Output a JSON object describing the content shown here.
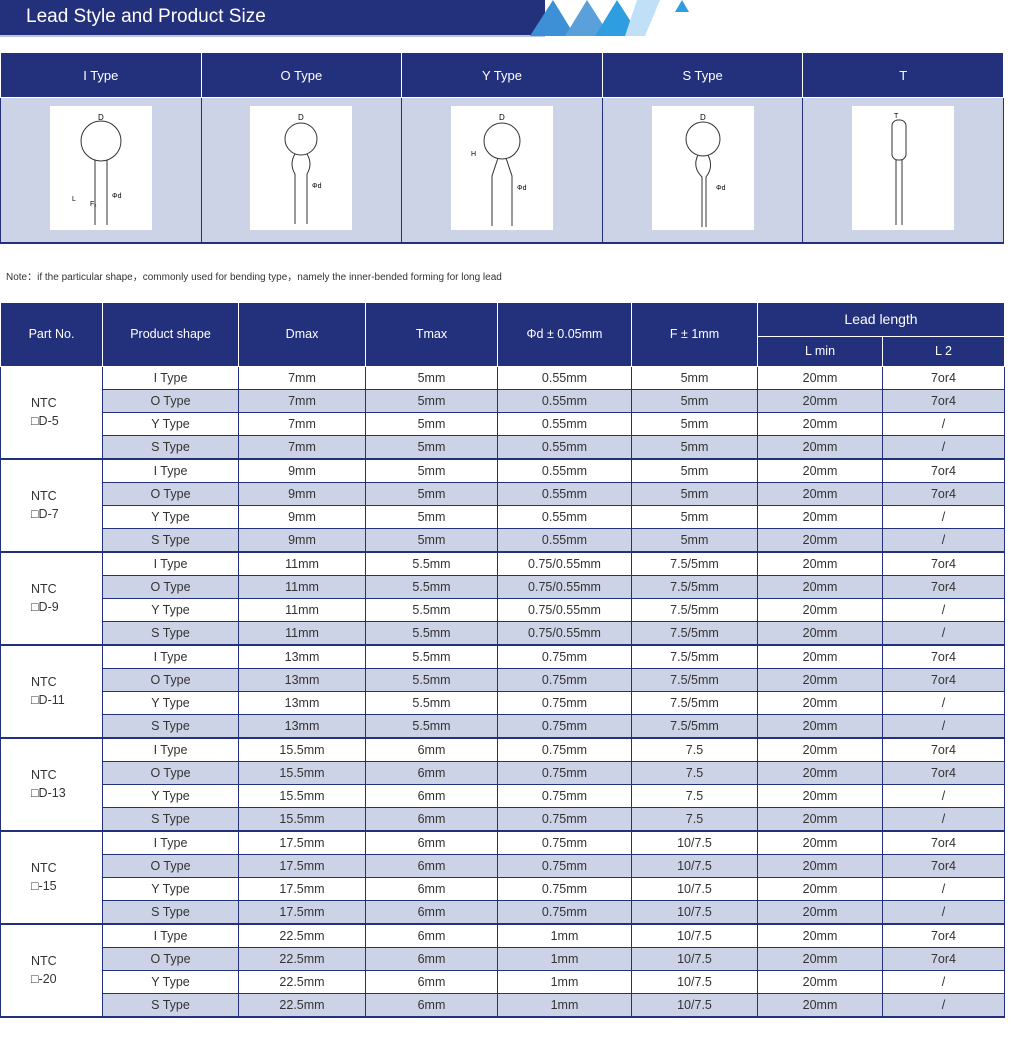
{
  "banner": {
    "title": "Lead Style and Product Size",
    "accent": "#23307c"
  },
  "lead_styles": [
    "I Type",
    "O Type",
    "Y Type",
    "S Type",
    "T"
  ],
  "note": "Note：if the particular shape，commonly used for bending type，namely the inner-bended forming for long lead",
  "table": {
    "headers": {
      "part": "Part No.",
      "shape": "Product shape",
      "dmax": "Dmax",
      "tmax": "Tmax",
      "d": "Φd ± 0.05mm",
      "f": "F ± 1mm",
      "lead": "Lead length",
      "lmin": "L min",
      "l2": "L 2"
    },
    "groups": [
      {
        "part": [
          "NTC",
          "□D-5"
        ],
        "rows": [
          [
            "I Type",
            "7mm",
            "5mm",
            "0.55mm",
            "5mm",
            "20mm",
            "7or4"
          ],
          [
            "O Type",
            "7mm",
            "5mm",
            "0.55mm",
            "5mm",
            "20mm",
            "7or4"
          ],
          [
            "Y Type",
            "7mm",
            "5mm",
            "0.55mm",
            "5mm",
            "20mm",
            "/"
          ],
          [
            "S Type",
            "7mm",
            "5mm",
            "0.55mm",
            "5mm",
            "20mm",
            "/"
          ]
        ]
      },
      {
        "part": [
          "NTC",
          "□D-7"
        ],
        "rows": [
          [
            "I Type",
            "9mm",
            "5mm",
            "0.55mm",
            "5mm",
            "20mm",
            "7or4"
          ],
          [
            "O Type",
            "9mm",
            "5mm",
            "0.55mm",
            "5mm",
            "20mm",
            "7or4"
          ],
          [
            "Y Type",
            "9mm",
            "5mm",
            "0.55mm",
            "5mm",
            "20mm",
            "/"
          ],
          [
            "S Type",
            "9mm",
            "5mm",
            "0.55mm",
            "5mm",
            "20mm",
            "/"
          ]
        ]
      },
      {
        "part": [
          "NTC",
          "□D-9"
        ],
        "rows": [
          [
            "I Type",
            "11mm",
            "5.5mm",
            "0.75/0.55mm",
            "7.5/5mm",
            "20mm",
            "7or4"
          ],
          [
            "O Type",
            "11mm",
            "5.5mm",
            "0.75/0.55mm",
            "7.5/5mm",
            "20mm",
            "7or4"
          ],
          [
            "Y Type",
            "11mm",
            "5.5mm",
            "0.75/0.55mm",
            "7.5/5mm",
            "20mm",
            "/"
          ],
          [
            "S Type",
            "11mm",
            "5.5mm",
            "0.75/0.55mm",
            "7.5/5mm",
            "20mm",
            "/"
          ]
        ]
      },
      {
        "part": [
          "NTC",
          "□D-11"
        ],
        "rows": [
          [
            "I Type",
            "13mm",
            "5.5mm",
            "0.75mm",
            "7.5/5mm",
            "20mm",
            "7or4"
          ],
          [
            "O Type",
            "13mm",
            "5.5mm",
            "0.75mm",
            "7.5/5mm",
            "20mm",
            "7or4"
          ],
          [
            "Y Type",
            "13mm",
            "5.5mm",
            "0.75mm",
            "7.5/5mm",
            "20mm",
            "/"
          ],
          [
            "S Type",
            "13mm",
            "5.5mm",
            "0.75mm",
            "7.5/5mm",
            "20mm",
            "/"
          ]
        ]
      },
      {
        "part": [
          "NTC",
          "□D-13"
        ],
        "rows": [
          [
            "I Type",
            "15.5mm",
            "6mm",
            "0.75mm",
            "7.5",
            "20mm",
            "7or4"
          ],
          [
            "O Type",
            "15.5mm",
            "6mm",
            "0.75mm",
            "7.5",
            "20mm",
            "7or4"
          ],
          [
            "Y Type",
            "15.5mm",
            "6mm",
            "0.75mm",
            "7.5",
            "20mm",
            "/"
          ],
          [
            "S Type",
            "15.5mm",
            "6mm",
            "0.75mm",
            "7.5",
            "20mm",
            "/"
          ]
        ]
      },
      {
        "part": [
          "NTC",
          "□-15"
        ],
        "rows": [
          [
            "I Type",
            "17.5mm",
            "6mm",
            "0.75mm",
            "10/7.5",
            "20mm",
            "7or4"
          ],
          [
            "O Type",
            "17.5mm",
            "6mm",
            "0.75mm",
            "10/7.5",
            "20mm",
            "7or4"
          ],
          [
            "Y Type",
            "17.5mm",
            "6mm",
            "0.75mm",
            "10/7.5",
            "20mm",
            "/"
          ],
          [
            "S Type",
            "17.5mm",
            "6mm",
            "0.75mm",
            "10/7.5",
            "20mm",
            "/"
          ]
        ]
      },
      {
        "part": [
          "NTC",
          "□-20"
        ],
        "rows": [
          [
            "I Type",
            "22.5mm",
            "6mm",
            "1mm",
            "10/7.5",
            "20mm",
            "7or4"
          ],
          [
            "O Type",
            "22.5mm",
            "6mm",
            "1mm",
            "10/7.5",
            "20mm",
            "7or4"
          ],
          [
            "Y Type",
            "22.5mm",
            "6mm",
            "1mm",
            "10/7.5",
            "20mm",
            "/"
          ],
          [
            "S Type",
            "22.5mm",
            "6mm",
            "1mm",
            "10/7.5",
            "20mm",
            "/"
          ]
        ]
      }
    ]
  }
}
